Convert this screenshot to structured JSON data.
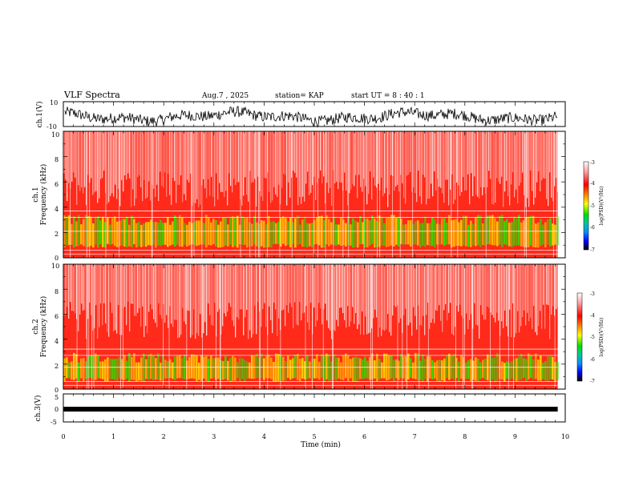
{
  "header": {
    "title": "VLF Spectra",
    "date": "Aug.7 , 2025",
    "station": "station= KAP",
    "start_ut": "start UT = 8 : 40 : 1"
  },
  "colors": {
    "spectro_high": "#ff2a1a",
    "spectro_white": "#ffffff",
    "spectro_yellow": "#ffd400",
    "spectro_green": "#33e000",
    "trace": "#000000",
    "frame": "#000000"
  },
  "chart_data": [
    {
      "id": "ch1-waveform",
      "type": "line",
      "ylabel": "ch.1(V)",
      "ylim": [
        -10,
        10
      ],
      "yticks": [
        "10",
        "-10"
      ],
      "xlim": [
        0,
        10
      ],
      "data_end_min": 9.85,
      "description_values": "noise trace roughly between -8 and 4 V"
    },
    {
      "id": "ch1-spectrogram",
      "type": "heatmap",
      "ylabel_line1": "ch.1",
      "ylabel_line2": "Frequency (kHz)",
      "ylim": [
        0,
        10
      ],
      "yticks": [
        "10",
        "8",
        "6",
        "4",
        "2",
        "0"
      ],
      "xlim": [
        0,
        10
      ],
      "data_end_min": 9.85,
      "low_band_khz": [
        0.8,
        3.4
      ],
      "colorbar": {
        "label": "log(PSD)(V²/Hz)",
        "range": [
          -7,
          -3
        ],
        "ticks": [
          "-3",
          "-4",
          "-5",
          "-6",
          "-7"
        ]
      }
    },
    {
      "id": "ch2-spectrogram",
      "type": "heatmap",
      "ylabel_line1": "ch.2",
      "ylabel_line2": "Frequency (kHz)",
      "ylim": [
        0,
        10
      ],
      "yticks": [
        "10",
        "8",
        "6",
        "4",
        "2",
        "0"
      ],
      "xlim": [
        0,
        10
      ],
      "data_end_min": 9.85,
      "low_band_khz": [
        0.6,
        2.9
      ],
      "colorbar": {
        "label": "log(PSD)(V²/Hz)",
        "range": [
          -7,
          -3
        ],
        "ticks": [
          "-3",
          "-4",
          "-5",
          "-6",
          "-7"
        ]
      }
    },
    {
      "id": "ch3-waveform",
      "type": "line",
      "ylabel": "ch.3(V)",
      "ylim": [
        -5,
        5
      ],
      "yticks": [
        "5",
        "0",
        "-5"
      ],
      "xlim": [
        0,
        10
      ],
      "data_end_min": 9.85,
      "level_v": [
        -0.6,
        0.6
      ]
    }
  ],
  "x_axis": {
    "label": "Time (min)",
    "ticks": [
      "0",
      "1",
      "2",
      "3",
      "4",
      "5",
      "6",
      "7",
      "8",
      "9",
      "10"
    ]
  }
}
